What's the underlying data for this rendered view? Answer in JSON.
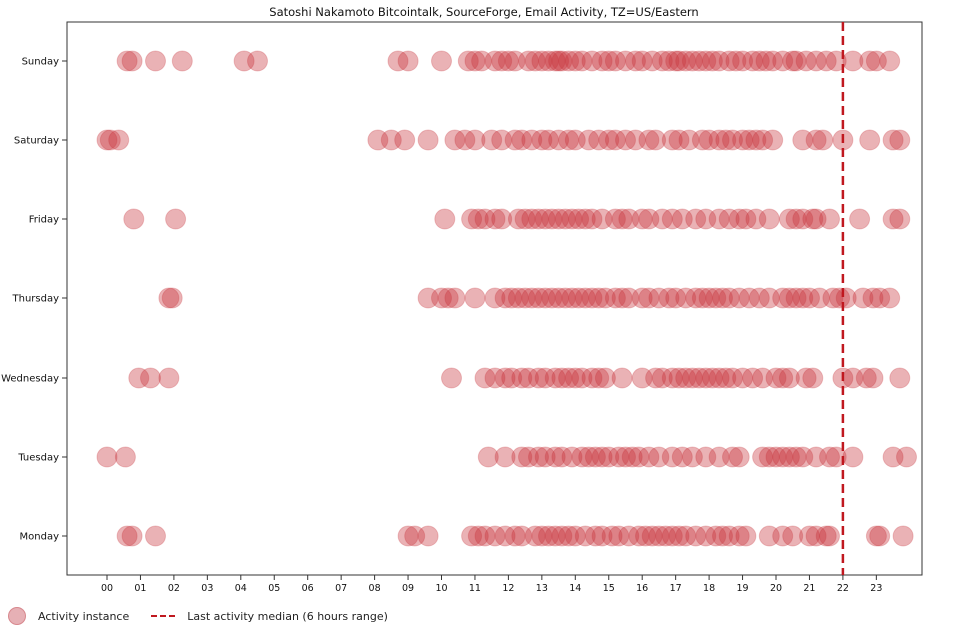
{
  "chart_data": {
    "type": "scatter",
    "title": "Satoshi Nakamoto Bitcointalk, SourceForge, Email Activity, TZ=US/Eastern",
    "xlabel": "",
    "ylabel": "",
    "x_ticks": [
      "00",
      "01",
      "02",
      "03",
      "04",
      "05",
      "06",
      "07",
      "08",
      "09",
      "10",
      "11",
      "12",
      "13",
      "14",
      "15",
      "16",
      "17",
      "18",
      "19",
      "20",
      "21",
      "22",
      "23"
    ],
    "y_categories": [
      "Monday",
      "Tuesday",
      "Wednesday",
      "Thursday",
      "Friday",
      "Saturday",
      "Sunday"
    ],
    "xlim": [
      -1.2,
      24.5
    ],
    "grid": false,
    "legend_position": "bottom-left",
    "marker_color": "#c8343c",
    "series": [
      {
        "name": "Activity instance",
        "points": {
          "Sunday": [
            0.6,
            0.75,
            1.45,
            2.25,
            4.1,
            4.5,
            8.7,
            9.0,
            10.0,
            10.8,
            11.0,
            11.2,
            11.6,
            11.8,
            12.0,
            12.2,
            12.6,
            12.8,
            13.0,
            13.2,
            13.4,
            13.5,
            13.6,
            13.8,
            14.0,
            14.2,
            14.5,
            14.8,
            15.0,
            15.2,
            15.5,
            15.8,
            16.0,
            16.3,
            16.6,
            16.8,
            17.0,
            17.1,
            17.3,
            17.5,
            17.7,
            17.9,
            18.1,
            18.3,
            18.6,
            18.8,
            19.0,
            19.3,
            19.5,
            19.7,
            19.9,
            20.2,
            20.5,
            20.6,
            20.9,
            21.2,
            21.5,
            21.8,
            22.3,
            22.8,
            23.0,
            23.4
          ],
          "Saturday": [
            0.0,
            0.1,
            0.35,
            8.1,
            8.5,
            8.9,
            9.6,
            10.4,
            10.7,
            11.0,
            11.5,
            11.8,
            12.2,
            12.4,
            12.7,
            13.0,
            13.2,
            13.5,
            13.8,
            14.0,
            14.4,
            14.7,
            15.0,
            15.2,
            15.5,
            15.8,
            16.2,
            16.4,
            16.9,
            17.1,
            17.4,
            17.8,
            18.0,
            18.3,
            18.5,
            18.7,
            19.0,
            19.2,
            19.4,
            19.6,
            19.9,
            20.8,
            21.2,
            21.4,
            22.0,
            22.8,
            23.5,
            23.7
          ],
          "Friday": [
            0.8,
            2.05,
            10.1,
            10.9,
            11.1,
            11.3,
            11.6,
            11.8,
            12.3,
            12.5,
            12.7,
            12.9,
            13.1,
            13.3,
            13.5,
            13.7,
            13.9,
            14.1,
            14.3,
            14.5,
            14.8,
            15.2,
            15.4,
            15.6,
            16.0,
            16.2,
            16.6,
            16.9,
            17.2,
            17.6,
            17.9,
            18.3,
            18.6,
            18.9,
            19.1,
            19.4,
            19.8,
            20.4,
            20.6,
            20.8,
            21.1,
            21.2,
            21.6,
            22.5,
            23.5,
            23.7
          ],
          "Thursday": [
            1.85,
            1.95,
            9.6,
            10.0,
            10.2,
            10.4,
            11.0,
            11.6,
            11.9,
            12.1,
            12.3,
            12.5,
            12.7,
            12.9,
            13.1,
            13.3,
            13.5,
            13.7,
            13.9,
            14.1,
            14.3,
            14.5,
            14.7,
            14.9,
            15.2,
            15.4,
            15.6,
            16.0,
            16.2,
            16.5,
            16.8,
            17.0,
            17.3,
            17.6,
            17.8,
            18.0,
            18.2,
            18.4,
            18.6,
            18.9,
            19.2,
            19.5,
            19.8,
            20.2,
            20.4,
            20.6,
            20.8,
            21.0,
            21.3,
            21.7,
            21.9,
            22.1,
            22.6,
            22.9,
            23.1,
            23.4
          ],
          "Wednesday": [
            0.95,
            1.3,
            1.85,
            10.3,
            11.3,
            11.6,
            11.9,
            12.1,
            12.4,
            12.6,
            12.9,
            13.1,
            13.4,
            13.6,
            13.8,
            14.0,
            14.2,
            14.5,
            14.7,
            14.9,
            15.4,
            16.0,
            16.4,
            16.6,
            16.9,
            17.1,
            17.3,
            17.5,
            17.7,
            17.9,
            18.1,
            18.3,
            18.5,
            18.7,
            19.0,
            19.3,
            19.6,
            20.0,
            20.2,
            20.4,
            20.9,
            21.1,
            22.0,
            22.3,
            22.7,
            22.9,
            23.7
          ],
          "Tuesday": [
            0.0,
            0.55,
            11.4,
            11.9,
            12.4,
            12.6,
            12.9,
            13.1,
            13.4,
            13.6,
            13.9,
            14.2,
            14.4,
            14.6,
            14.8,
            15.0,
            15.3,
            15.5,
            15.7,
            15.9,
            16.2,
            16.5,
            16.9,
            17.2,
            17.5,
            17.9,
            18.3,
            18.7,
            18.9,
            19.6,
            19.8,
            20.0,
            20.2,
            20.4,
            20.6,
            20.8,
            21.2,
            21.6,
            21.8,
            22.3,
            23.5,
            23.9
          ],
          "Monday": [
            0.6,
            0.75,
            1.45,
            9.0,
            9.2,
            9.6,
            10.9,
            11.1,
            11.3,
            11.6,
            11.9,
            12.2,
            12.4,
            12.8,
            13.0,
            13.2,
            13.4,
            13.6,
            13.8,
            14.0,
            14.3,
            14.6,
            14.8,
            15.1,
            15.3,
            15.6,
            15.9,
            16.1,
            16.3,
            16.5,
            16.7,
            16.9,
            17.1,
            17.3,
            17.6,
            17.9,
            18.2,
            18.4,
            18.6,
            18.9,
            19.1,
            19.8,
            20.2,
            20.5,
            21.0,
            21.2,
            21.5,
            21.6,
            23.0,
            23.1,
            23.8
          ]
        }
      },
      {
        "name": "Last activity median (6 hours range)",
        "x": 22.0,
        "style": "dashed-vertical-line"
      }
    ]
  },
  "legend": {
    "points_label": "Activity instance",
    "line_label": "Last activity median (6 hours range)"
  }
}
